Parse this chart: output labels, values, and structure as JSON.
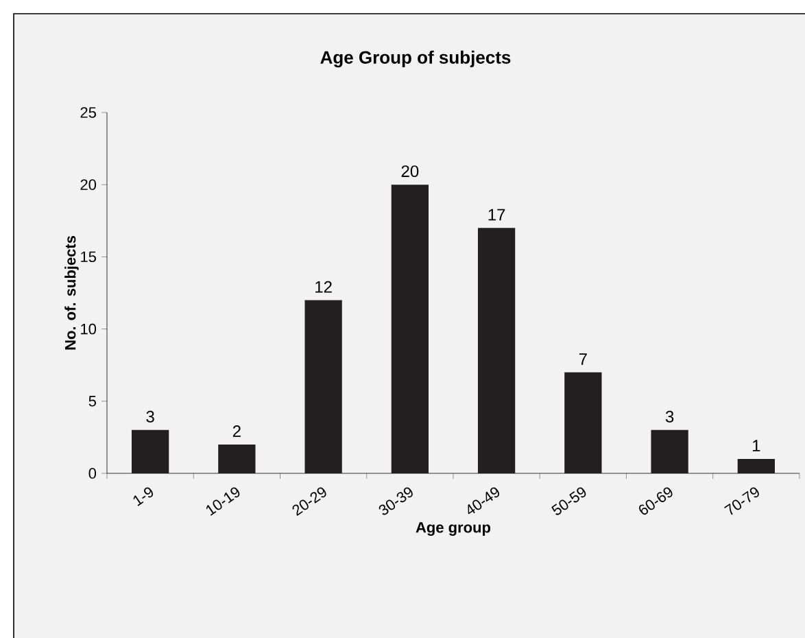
{
  "chart_data": {
    "type": "bar",
    "title": "Age Group of subjects",
    "xlabel": "Age group",
    "ylabel": "No. of. subjects",
    "categories": [
      "1-9",
      "10-19",
      "20-29",
      "30-39",
      "40-49",
      "50-59",
      "60-69",
      "70-79"
    ],
    "values": [
      3,
      2,
      12,
      20,
      17,
      7,
      3,
      1
    ],
    "color": "#231f20",
    "ylim": [
      0,
      25
    ],
    "yticks": [
      0,
      5,
      10,
      15,
      20,
      25
    ],
    "data_labels": true
  }
}
